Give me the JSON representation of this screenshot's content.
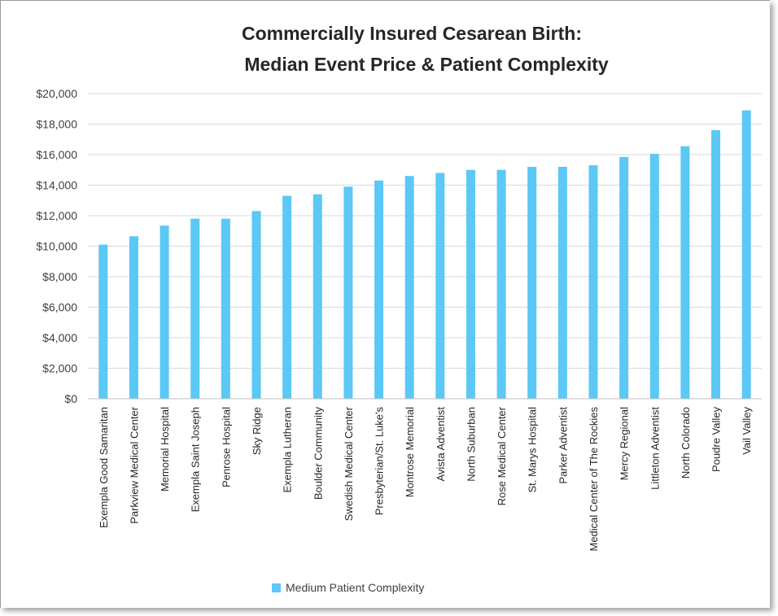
{
  "chart_data": {
    "type": "bar",
    "title_lines": [
      "Commercially Insured Cesarean Birth:",
      "Median Event Price & Patient Complexity"
    ],
    "xlabel": "",
    "ylabel": "",
    "ylim": [
      0,
      20000
    ],
    "y_ticks": [
      "$0",
      "$2,000",
      "$4,000",
      "$6,000",
      "$8,000",
      "$10,000",
      "$12,000",
      "$14,000",
      "$16,000",
      "$18,000",
      "$20,000"
    ],
    "y_tick_values": [
      0,
      2000,
      4000,
      6000,
      8000,
      10000,
      12000,
      14000,
      16000,
      18000,
      20000
    ],
    "grid": true,
    "legend_position": "bottom",
    "categories": [
      "Exempla Good Samaritan",
      "Parkview Medical Center",
      "Memorial Hospital",
      "Exempla Saint Joseph",
      "Penrose Hospital",
      "Sky Ridge",
      "Exempla Lutheran",
      "Boulder Community",
      "Swedish Medical Center",
      "Presbyterian/St. Luke's",
      "Montrose Memorial",
      "Avista Adventist",
      "North Suburban",
      "Rose Medical Center",
      "St. Marys Hospital",
      "Parker Adventist",
      "Medical Center of The Rockies",
      "Mercy Regional",
      "Littleton Adventist",
      "North Colorado",
      "Poudre Valley",
      "Vail Valley"
    ],
    "series": [
      {
        "name": "Medium Patient Complexity",
        "color": "#5bc8f5",
        "values": [
          10100,
          10650,
          11350,
          11800,
          11800,
          12300,
          13300,
          13400,
          13900,
          14300,
          14600,
          14800,
          15000,
          15000,
          15200,
          15200,
          15300,
          15850,
          16050,
          16550,
          17600,
          18900
        ]
      }
    ]
  }
}
